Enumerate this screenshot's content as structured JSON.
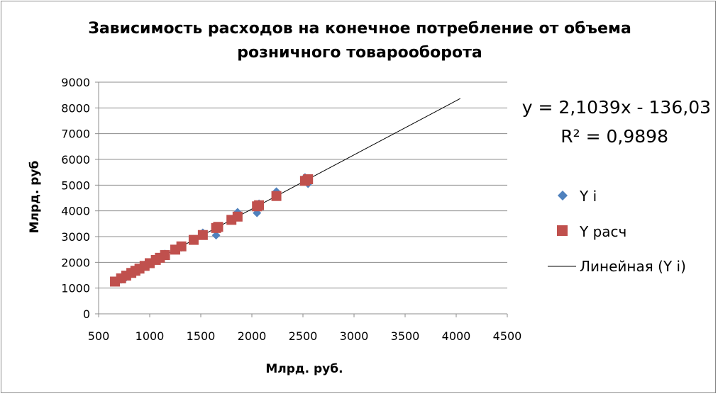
{
  "chart_data": {
    "type": "scatter",
    "title": "Зависимость расходов на конечное потребление от объема розничного товарооборота",
    "title_lines": [
      "Зависимость расходов на конечное потребление от объема",
      "розничного товарооборота"
    ],
    "xlabel": "Млрд. руб.",
    "ylabel": "Млрд. руб",
    "xlim": [
      500,
      4500
    ],
    "ylim": [
      0,
      9000
    ],
    "x_ticks": [
      500,
      1000,
      1500,
      2000,
      2500,
      3000,
      3500,
      4000,
      4500
    ],
    "y_ticks": [
      0,
      1000,
      2000,
      3000,
      4000,
      5000,
      6000,
      7000,
      8000,
      9000
    ],
    "grid": "horizontal",
    "legend_position": "right",
    "series": [
      {
        "name": "Y i",
        "marker": "diamond",
        "color": "#4f81bd",
        "x": [
          660,
          720,
          770,
          820,
          860,
          900,
          950,
          1000,
          1060,
          1100,
          1150,
          1250,
          1310,
          1430,
          1520,
          1650,
          1670,
          1800,
          1860,
          2050,
          2070,
          2240,
          2520,
          2550
        ],
        "y": [
          1250,
          1330,
          1420,
          1600,
          1720,
          1780,
          1900,
          1990,
          2100,
          2200,
          2330,
          2500,
          2580,
          2900,
          3150,
          3050,
          3400,
          3650,
          3950,
          3920,
          4280,
          4750,
          5300,
          5050
        ]
      },
      {
        "name": "Y расч",
        "marker": "square",
        "color": "#c0504d",
        "x": [
          660,
          720,
          770,
          820,
          860,
          900,
          950,
          1000,
          1060,
          1100,
          1150,
          1250,
          1310,
          1430,
          1520,
          1650,
          1670,
          1800,
          1860,
          2050,
          2070,
          2240,
          2520,
          2550
        ],
        "y": [
          1253,
          1378,
          1484,
          1589,
          1673,
          1757,
          1863,
          1968,
          2094,
          2178,
          2283,
          2494,
          2620,
          2873,
          3062,
          3335,
          3378,
          3651,
          3777,
          4177,
          4219,
          4577,
          5166,
          5229
        ]
      }
    ],
    "trendline": {
      "name": "Линейная (Y i)",
      "color": "#000000",
      "slope": 2.1039,
      "intercept": -136.03,
      "x_range": [
        660,
        4040
      ]
    },
    "annotation": {
      "equation": "y = 2,1039x - 136,03",
      "r_squared": "R² = 0,9898"
    }
  }
}
